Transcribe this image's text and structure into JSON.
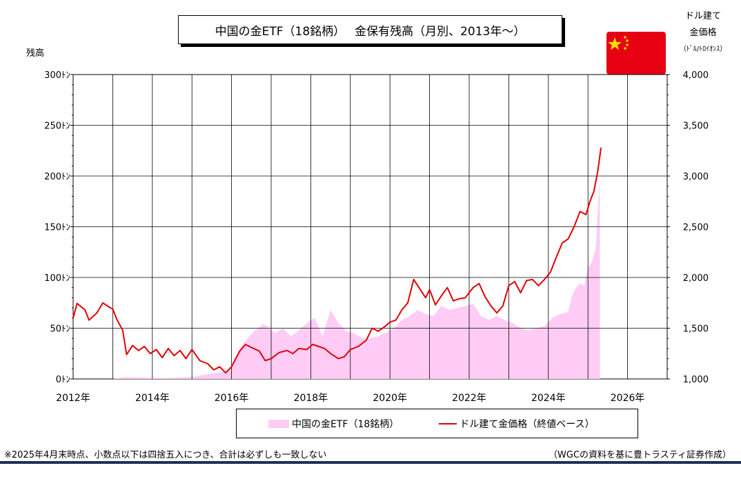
{
  "title": "中国の金ETF（18銘柄）　 金保有残高（月別、2013年～）",
  "left_axis_unit": "残高",
  "right_axis_unit": [
    "ドル建て",
    "金価格",
    "（ﾄﾞﾙ/ﾄﾛｲｵﾝｽ）"
  ],
  "legend": {
    "etf": "中国の金ETF（18銘柄）",
    "price": "ドル建て金価格（終値ベース）"
  },
  "footnote": "※2025年4月末時点、小数点以下は四捨五入につき、合計は必ずしも一致しない",
  "source": "（WGCの資料を基に豊トラスティ証券作成）",
  "flag_icon": "china-flag-icon",
  "colors": {
    "etf_fill": "#ffccf5",
    "price_line": "#e00000",
    "grid": "#000000"
  },
  "chart_data": {
    "type": "area",
    "grid": true,
    "x_ticks": [
      "2012年",
      "2014年",
      "2016年",
      "2018年",
      "2020年",
      "2022年",
      "2024年",
      "2026年"
    ],
    "y_left": {
      "ticks": [
        "0ﾄﾝ",
        "50ﾄﾝ",
        "100ﾄﾝ",
        "150ﾄﾝ",
        "200ﾄﾝ",
        "250ﾄﾝ",
        "300ﾄﾝ"
      ],
      "lim": [
        0,
        300
      ]
    },
    "y_right": {
      "ticks": [
        "1,000",
        "1,500",
        "2,000",
        "2,500",
        "3,000",
        "3,500",
        "4,000"
      ],
      "lim": [
        1000,
        4000
      ]
    },
    "x_range": [
      2012.0,
      2027.0
    ],
    "series": [
      {
        "name": "中国の金ETF（18銘柄）",
        "axis": "left",
        "x": [
          2013.0,
          2013.3,
          2014.0,
          2014.5,
          2015.0,
          2015.3,
          2015.6,
          2015.9,
          2016.0,
          2016.2,
          2016.4,
          2016.6,
          2016.8,
          2016.9,
          2017.1,
          2017.3,
          2017.5,
          2017.7,
          2017.9,
          2018.1,
          2018.3,
          2018.5,
          2018.7,
          2018.9,
          2019.1,
          2019.3,
          2019.5,
          2019.7,
          2019.9,
          2020.1,
          2020.3,
          2020.5,
          2020.7,
          2020.9,
          2021.1,
          2021.3,
          2021.5,
          2021.7,
          2021.9,
          2022.1,
          2022.3,
          2022.5,
          2022.7,
          2022.9,
          2023.1,
          2023.3,
          2023.5,
          2023.7,
          2023.9,
          2024.1,
          2024.2,
          2024.3,
          2024.5,
          2024.6,
          2024.7,
          2024.8,
          2024.9,
          2025.0,
          2025.1,
          2025.2,
          2025.3
        ],
        "values": [
          0,
          2,
          1,
          1,
          2,
          4,
          6,
          8,
          14,
          30,
          40,
          48,
          54,
          52,
          45,
          50,
          42,
          48,
          55,
          60,
          42,
          68,
          55,
          47,
          45,
          40,
          40,
          42,
          46,
          50,
          58,
          62,
          68,
          64,
          62,
          72,
          68,
          70,
          72,
          74,
          62,
          58,
          62,
          58,
          55,
          50,
          48,
          50,
          52,
          60,
          62,
          64,
          66,
          82,
          90,
          94,
          92,
          110,
          115,
          130,
          200
        ]
      },
      {
        "name": "ドル建て金価格（終値ベース）",
        "axis": "right",
        "x": [
          2012.0,
          2012.1,
          2012.3,
          2012.4,
          2012.6,
          2012.75,
          2012.9,
          2013.0,
          2013.1,
          2013.25,
          2013.35,
          2013.5,
          2013.65,
          2013.8,
          2013.95,
          2014.1,
          2014.25,
          2014.4,
          2014.55,
          2014.7,
          2014.85,
          2015.0,
          2015.2,
          2015.4,
          2015.55,
          2015.7,
          2015.85,
          2016.0,
          2016.2,
          2016.35,
          2016.5,
          2016.7,
          2016.85,
          2017.0,
          2017.2,
          2017.4,
          2017.55,
          2017.7,
          2017.9,
          2018.05,
          2018.2,
          2018.35,
          2018.5,
          2018.7,
          2018.85,
          2019.0,
          2019.2,
          2019.4,
          2019.55,
          2019.7,
          2019.85,
          2020.0,
          2020.15,
          2020.3,
          2020.45,
          2020.6,
          2020.75,
          2020.9,
          2021.0,
          2021.15,
          2021.3,
          2021.45,
          2021.6,
          2021.75,
          2021.9,
          2022.1,
          2022.25,
          2022.4,
          2022.55,
          2022.7,
          2022.85,
          2023.0,
          2023.15,
          2023.3,
          2023.45,
          2023.6,
          2023.75,
          2023.9,
          2024.05,
          2024.2,
          2024.35,
          2024.5,
          2024.65,
          2024.8,
          2024.95,
          2025.05,
          2025.15,
          2025.25,
          2025.33
        ],
        "values": [
          1600,
          1745,
          1680,
          1580,
          1650,
          1750,
          1710,
          1690,
          1590,
          1480,
          1240,
          1330,
          1280,
          1320,
          1250,
          1290,
          1210,
          1300,
          1230,
          1280,
          1200,
          1290,
          1180,
          1150,
          1090,
          1120,
          1060,
          1120,
          1270,
          1340,
          1310,
          1275,
          1180,
          1200,
          1260,
          1280,
          1250,
          1300,
          1290,
          1340,
          1320,
          1300,
          1250,
          1200,
          1220,
          1290,
          1320,
          1380,
          1500,
          1470,
          1510,
          1560,
          1580,
          1680,
          1750,
          1980,
          1890,
          1800,
          1880,
          1730,
          1820,
          1900,
          1770,
          1790,
          1800,
          1900,
          1940,
          1810,
          1720,
          1650,
          1720,
          1920,
          1960,
          1850,
          1970,
          1980,
          1920,
          1980,
          2050,
          2200,
          2340,
          2380,
          2500,
          2650,
          2620,
          2750,
          2850,
          3050,
          3280
        ]
      }
    ]
  }
}
